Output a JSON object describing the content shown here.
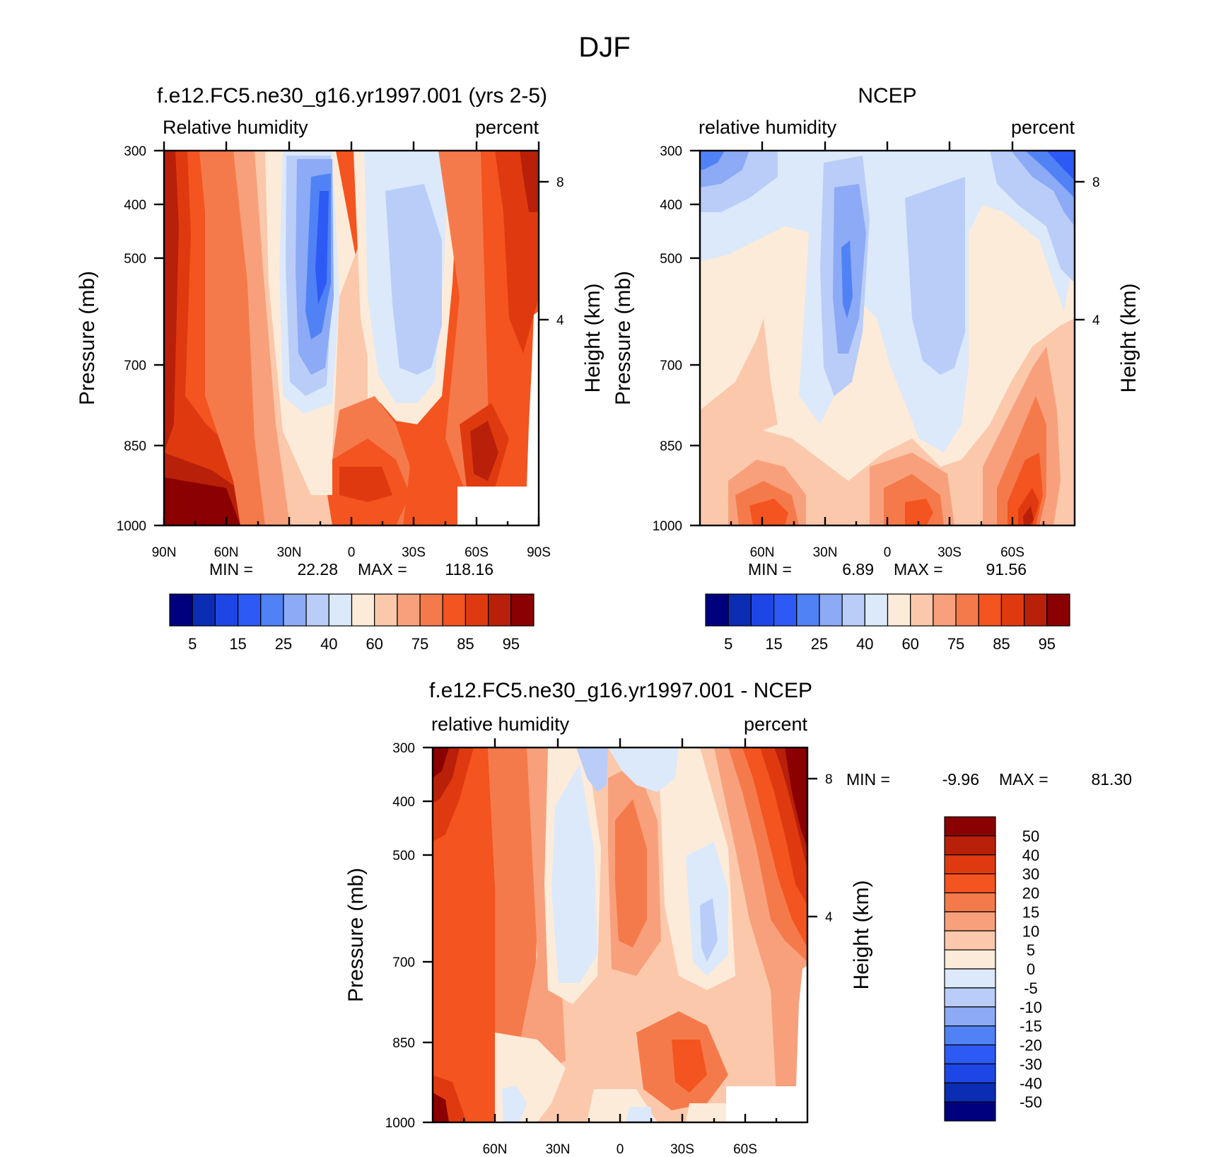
{
  "figure": {
    "title": "DJF"
  },
  "chart_data": [
    {
      "type": "heatmap",
      "title": "f.e12.FC5.ne30_g16.yr1997.001 (yrs 2-5)",
      "left_label": "Relative humidity",
      "right_label": "percent",
      "xlabel": "",
      "ylabel": "Pressure (mb)",
      "y2label": "Height (km)",
      "x_ticks": [
        "90N",
        "60N",
        "30N",
        "0",
        "30S",
        "60S",
        "90S"
      ],
      "y_ticks": [
        "300",
        "400",
        "500",
        "700",
        "850",
        "1000"
      ],
      "y2_ticks": [
        "8",
        "4"
      ],
      "xlim": [
        90,
        -90
      ],
      "ylim": [
        1000,
        300
      ],
      "y_scale": "log",
      "min_label": "MIN =",
      "min": "22.28",
      "max_label": "MAX =",
      "max": "118.16",
      "levels": [
        "5",
        "15",
        "25",
        "40",
        "60",
        "75",
        "85",
        "95"
      ],
      "colorbar": "horizontal"
    },
    {
      "type": "heatmap",
      "title": "NCEP",
      "left_label": "relative humidity",
      "right_label": "percent",
      "xlabel": "",
      "ylabel": "Pressure (mb)",
      "y2label": "Height (km)",
      "x_ticks": [
        "60N",
        "30N",
        "0",
        "30S",
        "60S"
      ],
      "y_ticks": [
        "300",
        "400",
        "500",
        "700",
        "850",
        "1000"
      ],
      "y2_ticks": [
        "8",
        "4"
      ],
      "xlim": [
        90,
        -90
      ],
      "ylim": [
        1000,
        300
      ],
      "y_scale": "log",
      "min_label": "MIN =",
      "min": "6.89",
      "max_label": "MAX =",
      "max": "91.56",
      "levels": [
        "5",
        "15",
        "25",
        "40",
        "60",
        "75",
        "85",
        "95"
      ],
      "colorbar": "horizontal"
    },
    {
      "type": "heatmap",
      "title": "f.e12.FC5.ne30_g16.yr1997.001 - NCEP",
      "left_label": "relative humidity",
      "right_label": "percent",
      "xlabel": "",
      "ylabel": "Pressure (mb)",
      "y2label": "Height (km)",
      "x_ticks": [
        "60N",
        "30N",
        "0",
        "30S",
        "60S"
      ],
      "y_ticks": [
        "300",
        "400",
        "500",
        "700",
        "850",
        "1000"
      ],
      "y2_ticks": [
        "8",
        "4"
      ],
      "xlim": [
        90,
        -90
      ],
      "ylim": [
        1000,
        300
      ],
      "y_scale": "log",
      "min_label": "MIN =",
      "min": "-9.96",
      "max_label": "MAX =",
      "max": "81.30",
      "levels": [
        "50",
        "40",
        "30",
        "20",
        "15",
        "10",
        "5",
        "0",
        "-5",
        "-10",
        "-15",
        "-20",
        "-30",
        "-40",
        "-50"
      ],
      "colorbar": "vertical"
    }
  ],
  "palette": [
    "#00007f",
    "#0a2db4",
    "#1e46e6",
    "#2d5af5",
    "#5082f5",
    "#8caaf5",
    "#b9cdf8",
    "#dce9fa",
    "#fdebd9",
    "#fbc8ab",
    "#f8a07c",
    "#f57a4b",
    "#f4541f",
    "#df3a0f",
    "#b9200a",
    "#8b0000"
  ]
}
